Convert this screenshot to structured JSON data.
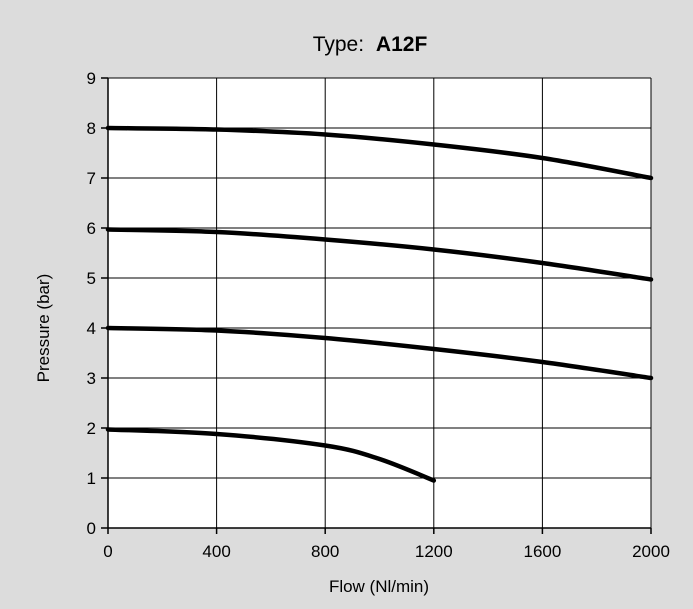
{
  "chart_data": {
    "type": "line",
    "title_prefix": "Type:",
    "title_model": "A12F",
    "xlabel": "Flow (Nl/min)",
    "ylabel": "Pressure (bar)",
    "xlim": [
      0,
      2000
    ],
    "ylim": [
      0,
      9
    ],
    "x_tick_values": [
      0,
      400,
      800,
      1200,
      1600,
      2000
    ],
    "x_tick_labels": [
      "0",
      "400",
      "800",
      "1200",
      "1600",
      "2000"
    ],
    "x_grid_values": [
      0,
      400,
      800,
      1200,
      1600,
      2000
    ],
    "y_tick_values": [
      0,
      1,
      2,
      3,
      4,
      5,
      6,
      7,
      8,
      9
    ],
    "y_tick_labels": [
      "0",
      "1",
      "2",
      "3",
      "4",
      "5",
      "6",
      "7",
      "8",
      "9"
    ],
    "grid": true,
    "line_color": "#000000",
    "background_color": "#dcdcdc",
    "plot_background": "#ffffff",
    "series": [
      {
        "x": [
          0,
          400,
          800,
          1200,
          1600,
          2000
        ],
        "y": [
          8.0,
          7.97,
          7.87,
          7.67,
          7.4,
          7.0
        ]
      },
      {
        "x": [
          0,
          400,
          800,
          1200,
          1600,
          2000
        ],
        "y": [
          5.97,
          5.92,
          5.77,
          5.57,
          5.3,
          4.97
        ]
      },
      {
        "x": [
          0,
          400,
          800,
          1200,
          1600,
          2000
        ],
        "y": [
          4.0,
          3.95,
          3.8,
          3.58,
          3.32,
          3.0
        ]
      },
      {
        "x": [
          0,
          400,
          800,
          1000,
          1200
        ],
        "y": [
          1.97,
          1.88,
          1.65,
          1.38,
          0.95
        ]
      }
    ]
  }
}
